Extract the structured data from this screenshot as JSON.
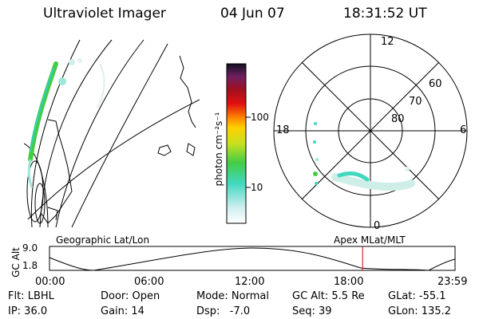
{
  "header": {
    "title": "Ultraviolet Imager",
    "date": "04 Jun 07",
    "time": "18:31:52 UT"
  },
  "colorbar": {
    "unit_label": "photon cm⁻²s⁻¹",
    "ticks": [
      "100",
      "10"
    ]
  },
  "polar": {
    "mlt_labels": {
      "top": "12",
      "left": "18",
      "right": "6",
      "bottom": "0"
    },
    "lat_labels": [
      "60",
      "70",
      "80"
    ]
  },
  "timeline": {
    "ylabel": "GC Alt",
    "yticks": [
      "9.0",
      "1.8"
    ],
    "left_caption": "Geographic Lat/Lon",
    "right_caption": "Apex MLat/MLT",
    "xticks": [
      "00:00",
      "06:00",
      "12:00",
      "18:00",
      "23:59"
    ],
    "marker_fraction": 0.7721
  },
  "info": {
    "flt": "Flt: LBHL",
    "door": "Door: Open",
    "mode": "Mode: Normal",
    "gcalt": "GC Alt: 5.5 Re",
    "glat": "GLat: -55.1",
    "ip": "IP: 36.0",
    "gain": "Gain: 14",
    "dsp": "Dsp:   -7.0",
    "seq": "Seq: 39",
    "glon": "GLon: 135.2"
  },
  "colors": {
    "marker": "#cc0000",
    "aurora_green": "#44cc44",
    "aurora_cyan": "#40d8c0"
  }
}
